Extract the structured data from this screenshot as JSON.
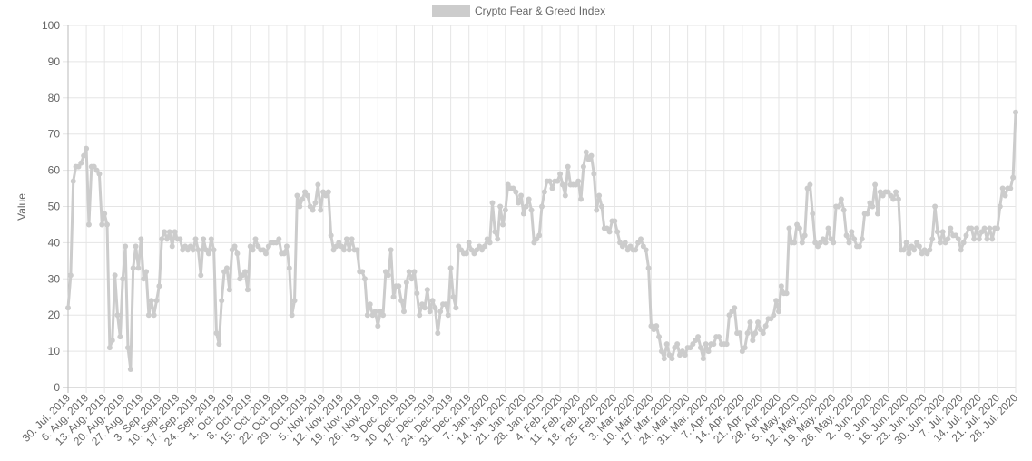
{
  "chart_data": {
    "type": "line",
    "legend_position": "top",
    "grid": true,
    "y_label": "Value",
    "ylim": [
      0,
      100
    ],
    "yticks": [
      0,
      10,
      20,
      30,
      40,
      50,
      60,
      70,
      80,
      90,
      100
    ],
    "categories": [
      "30. Jul. 2019",
      null,
      null,
      null,
      null,
      null,
      null,
      "6. Aug. 2019",
      null,
      null,
      null,
      null,
      null,
      null,
      "13. Aug. 2019",
      null,
      null,
      null,
      null,
      null,
      null,
      "20. Aug. 2019",
      null,
      null,
      null,
      null,
      null,
      null,
      "27. Aug. 2019",
      null,
      null,
      null,
      null,
      null,
      null,
      "3. Sep. 2019",
      null,
      null,
      null,
      null,
      null,
      null,
      "10. Sep. 2019",
      null,
      null,
      null,
      null,
      null,
      null,
      "17. Sep. 2019",
      null,
      null,
      null,
      null,
      null,
      null,
      "24. Sep. 2019",
      null,
      null,
      null,
      null,
      null,
      null,
      "1. Oct. 2019",
      null,
      null,
      null,
      null,
      null,
      null,
      "8. Oct. 2019",
      null,
      null,
      null,
      null,
      null,
      null,
      "15. Oct. 2019",
      null,
      null,
      null,
      null,
      null,
      null,
      "22. Oct. 2019",
      null,
      null,
      null,
      null,
      null,
      null,
      "29. Oct. 2019",
      null,
      null,
      null,
      null,
      null,
      null,
      "5. Nov. 2019",
      null,
      null,
      null,
      null,
      null,
      null,
      "12. Nov. 2019",
      null,
      null,
      null,
      null,
      null,
      null,
      "19. Nov. 2019",
      null,
      null,
      null,
      null,
      null,
      null,
      "26. Nov. 2019",
      null,
      null,
      null,
      null,
      null,
      null,
      "3. Dec. 2019",
      null,
      null,
      null,
      null,
      null,
      null,
      "10. Dec. 2019",
      null,
      null,
      null,
      null,
      null,
      null,
      "17. Dec. 2019",
      null,
      null,
      null,
      null,
      null,
      null,
      "24. Dec. 2019",
      null,
      null,
      null,
      null,
      null,
      null,
      "31. Dec. 2019",
      null,
      null,
      null,
      null,
      null,
      null,
      "7. Jan. 2020",
      null,
      null,
      null,
      null,
      null,
      null,
      "14. Jan. 2020",
      null,
      null,
      null,
      null,
      null,
      null,
      "21. Jan. 2020",
      null,
      null,
      null,
      null,
      null,
      null,
      "28. Jan. 2020",
      null,
      null,
      null,
      null,
      null,
      null,
      "4. Feb. 2020",
      null,
      null,
      null,
      null,
      null,
      null,
      "11. Feb. 2020",
      null,
      null,
      null,
      null,
      null,
      null,
      "18. Feb. 2020",
      null,
      null,
      null,
      null,
      null,
      null,
      "25. Feb. 2020",
      null,
      null,
      null,
      null,
      null,
      null,
      "3. Mar. 2020",
      null,
      null,
      null,
      null,
      null,
      null,
      "10. Mar. 2020",
      null,
      null,
      null,
      null,
      null,
      null,
      "17. Mar. 2020",
      null,
      null,
      null,
      null,
      null,
      null,
      "24. Mar. 2020",
      null,
      null,
      null,
      null,
      null,
      null,
      "31. Mar. 2020",
      null,
      null,
      null,
      null,
      null,
      null,
      "7. Apr. 2020",
      null,
      null,
      null,
      null,
      null,
      null,
      "14. Apr. 2020",
      null,
      null,
      null,
      null,
      null,
      null,
      "21. Apr. 2020",
      null,
      null,
      null,
      null,
      null,
      null,
      "28. Apr. 2020",
      null,
      null,
      null,
      null,
      null,
      null,
      "5. May. 2020",
      null,
      null,
      null,
      null,
      null,
      null,
      "12. May. 2020",
      null,
      null,
      null,
      null,
      null,
      null,
      "19. May. 2020",
      null,
      null,
      null,
      null,
      null,
      null,
      "26. May. 2020",
      null,
      null,
      null,
      null,
      null,
      null,
      "2. Jun. 2020",
      null,
      null,
      null,
      null,
      null,
      null,
      "9. Jun. 2020",
      null,
      null,
      null,
      null,
      null,
      null,
      "16. Jun. 2020",
      null,
      null,
      null,
      null,
      null,
      null,
      "23. Jun. 2020",
      null,
      null,
      null,
      null,
      null,
      null,
      "30. Jun. 2020",
      null,
      null,
      null,
      null,
      null,
      null,
      "7. Jul. 2020",
      null,
      null,
      null,
      null,
      null,
      null,
      "14. Jul. 2020",
      null,
      null,
      null,
      null,
      null,
      null,
      "21. Jul. 2020",
      null,
      null,
      null,
      null,
      null,
      null,
      "28. Jul. 2020"
    ],
    "series": [
      {
        "name": "Crypto Fear & Greed Index",
        "color": "#cccccc",
        "values": [
          22,
          31,
          57,
          61,
          61,
          62,
          64,
          66,
          45,
          61,
          61,
          60,
          59,
          45,
          48,
          45,
          11,
          13,
          31,
          20,
          14,
          30,
          39,
          11,
          5,
          33,
          39,
          33,
          41,
          30,
          32,
          20,
          24,
          20,
          24,
          28,
          41,
          43,
          41,
          43,
          39,
          43,
          41,
          41,
          38,
          39,
          38,
          39,
          38,
          41,
          38,
          31,
          41,
          38,
          37,
          41,
          38,
          15,
          12,
          24,
          32,
          33,
          27,
          38,
          39,
          37,
          30,
          31,
          32,
          27,
          39,
          38,
          41,
          39,
          38,
          38,
          37,
          39,
          40,
          40,
          40,
          41,
          37,
          37,
          39,
          33,
          20,
          24,
          53,
          50,
          52,
          54,
          53,
          50,
          49,
          51,
          56,
          49,
          54,
          53,
          54,
          42,
          38,
          39,
          40,
          39,
          38,
          41,
          38,
          41,
          38,
          38,
          32,
          32,
          30,
          20,
          23,
          20,
          21,
          17,
          21,
          20,
          32,
          31,
          38,
          25,
          28,
          28,
          24,
          21,
          29,
          32,
          30,
          32,
          26,
          20,
          23,
          22,
          27,
          21,
          24,
          22,
          15,
          21,
          23,
          23,
          20,
          33,
          25,
          22,
          39,
          38,
          37,
          37,
          40,
          38,
          37,
          38,
          39,
          38,
          39,
          41,
          40,
          51,
          43,
          41,
          50,
          45,
          49,
          56,
          55,
          55,
          54,
          51,
          53,
          48,
          50,
          52,
          49,
          40,
          41,
          42,
          50,
          54,
          57,
          57,
          55,
          57,
          57,
          59,
          56,
          53,
          61,
          56,
          56,
          56,
          57,
          52,
          61,
          65,
          63,
          64,
          59,
          49,
          53,
          50,
          44,
          44,
          43,
          46,
          46,
          43,
          40,
          39,
          40,
          38,
          39,
          38,
          38,
          40,
          41,
          39,
          38,
          33,
          17,
          16,
          17,
          14,
          10,
          8,
          12,
          9,
          8,
          11,
          12,
          9,
          10,
          9,
          11,
          11,
          12,
          13,
          14,
          11,
          8,
          12,
          10,
          12,
          12,
          14,
          14,
          12,
          12,
          12,
          20,
          21,
          22,
          15,
          15,
          10,
          11,
          15,
          18,
          13,
          15,
          18,
          16,
          15,
          17,
          19,
          19,
          20,
          24,
          21,
          28,
          26,
          26,
          44,
          40,
          40,
          45,
          44,
          40,
          42,
          55,
          56,
          48,
          40,
          39,
          40,
          41,
          40,
          44,
          41,
          40,
          50,
          50,
          52,
          49,
          42,
          40,
          43,
          41,
          39,
          39,
          41,
          48,
          48,
          51,
          50,
          56,
          48,
          54,
          53,
          54,
          54,
          53,
          52,
          54,
          52,
          38,
          38,
          40,
          37,
          39,
          38,
          40,
          39,
          37,
          38,
          37,
          38,
          41,
          50,
          43,
          40,
          43,
          40,
          41,
          44,
          42,
          42,
          41,
          38,
          40,
          42,
          44,
          44,
          41,
          44,
          41,
          43,
          44,
          41,
          44,
          41,
          44,
          44,
          50,
          55,
          53,
          55,
          55,
          58,
          76
        ]
      }
    ]
  }
}
